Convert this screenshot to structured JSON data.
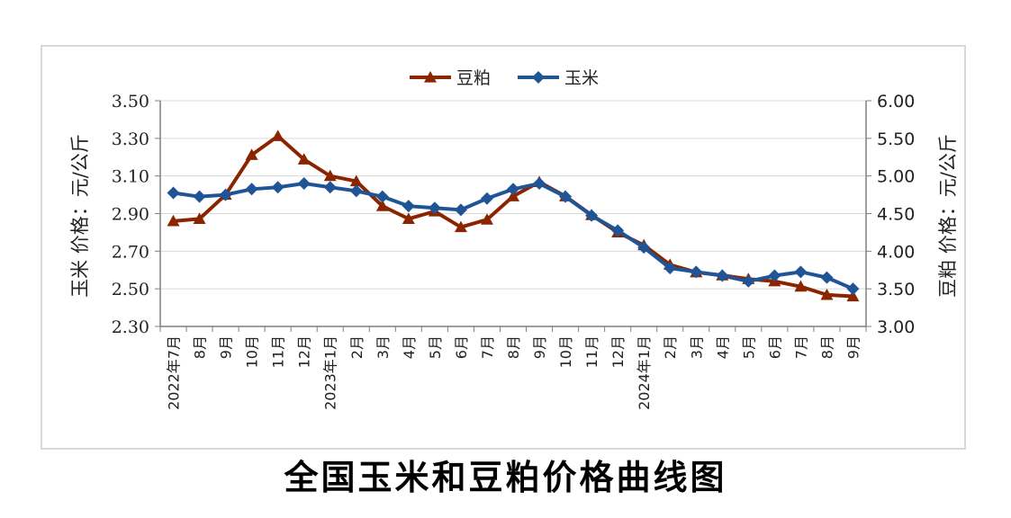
{
  "chart_data": {
    "type": "line",
    "title": "全国玉米和豆粕价格曲线图",
    "categories": [
      "2022年7月",
      "8月",
      "9月",
      "10月",
      "11月",
      "12月",
      "2023年1月",
      "2月",
      "3月",
      "4月",
      "5月",
      "6月",
      "7月",
      "8月",
      "9月",
      "10月",
      "11月",
      "12月",
      "2024年1月",
      "2月",
      "3月",
      "4月",
      "5月",
      "6月",
      "7月",
      "8月",
      "9月"
    ],
    "left_axis": {
      "label": "玉米 价格：元/公斤",
      "ylim": [
        2.3,
        3.5
      ],
      "ticks": [
        "2.30",
        "2.50",
        "2.70",
        "2.90",
        "3.10",
        "3.30",
        "3.50"
      ]
    },
    "right_axis": {
      "label": "豆粕 价格：元/公斤",
      "ylim": [
        3.0,
        6.0
      ],
      "ticks": [
        "3.00",
        "3.50",
        "4.00",
        "4.50",
        "5.00",
        "5.50",
        "6.00"
      ]
    },
    "legend": "top",
    "grid": true,
    "series": [
      {
        "name": "豆粕",
        "axis": "right",
        "color": "#8b2500",
        "marker": "triangle",
        "values": [
          4.4,
          4.43,
          4.75,
          5.28,
          5.53,
          5.22,
          5.0,
          4.93,
          4.6,
          4.43,
          4.53,
          4.32,
          4.42,
          4.73,
          4.92,
          4.73,
          4.48,
          4.25,
          4.08,
          3.82,
          3.72,
          3.68,
          3.63,
          3.6,
          3.53,
          3.42,
          3.4
        ]
      },
      {
        "name": "玉米",
        "axis": "left",
        "color": "#1f5597",
        "marker": "diamond",
        "values": [
          3.01,
          2.99,
          3.0,
          3.03,
          3.04,
          3.06,
          3.04,
          3.02,
          2.99,
          2.94,
          2.93,
          2.92,
          2.98,
          3.03,
          3.06,
          2.99,
          2.89,
          2.81,
          2.72,
          2.61,
          2.59,
          2.57,
          2.54,
          2.57,
          2.59,
          2.56,
          2.5
        ]
      }
    ]
  }
}
